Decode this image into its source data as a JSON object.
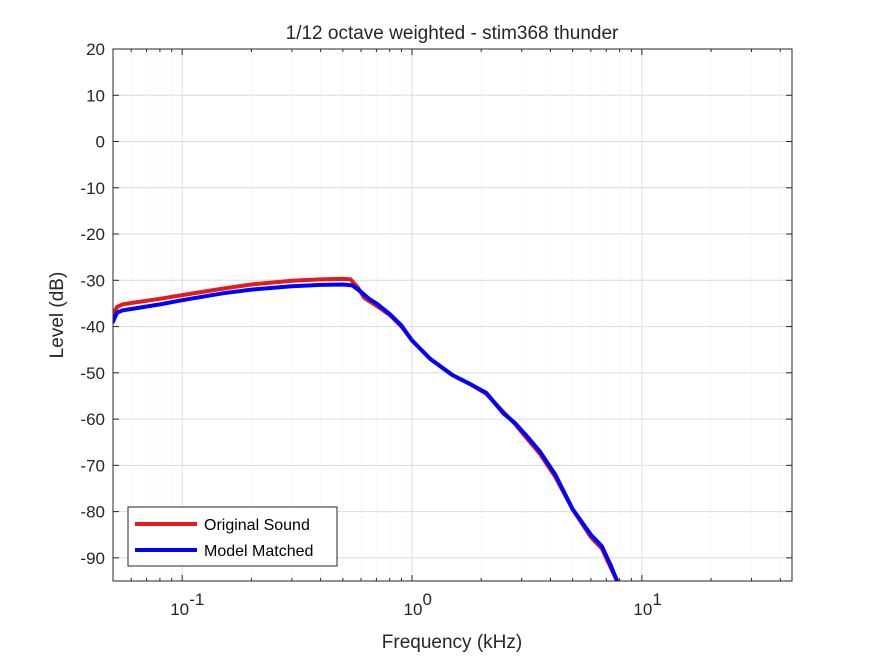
{
  "chart_data": {
    "type": "line",
    "title": "1/12 octave weighted - stim368 thunder",
    "xlabel": "Frequency (kHz)",
    "ylabel": "Level (dB)",
    "xscale": "log",
    "xlim": [
      0.05,
      45
    ],
    "ylim": [
      -95,
      20
    ],
    "grid": true,
    "minor_grid": true,
    "legend_position": "bottom-left",
    "x_ticks": [
      {
        "value": 0.1,
        "base": "10",
        "exp": "-1"
      },
      {
        "value": 1,
        "base": "10",
        "exp": "0"
      },
      {
        "value": 10,
        "base": "10",
        "exp": "1"
      }
    ],
    "y_ticks": [
      {
        "value": 20,
        "label": "20"
      },
      {
        "value": 10,
        "label": "10"
      },
      {
        "value": 0,
        "label": "0"
      },
      {
        "value": -10,
        "label": "-10"
      },
      {
        "value": -20,
        "label": "-20"
      },
      {
        "value": -30,
        "label": "-30"
      },
      {
        "value": -40,
        "label": "-40"
      },
      {
        "value": -50,
        "label": "-50"
      },
      {
        "value": -60,
        "label": "-60"
      },
      {
        "value": -70,
        "label": "-70"
      },
      {
        "value": -80,
        "label": "-80"
      },
      {
        "value": -90,
        "label": "-90"
      }
    ],
    "series": [
      {
        "name": "Original Sound",
        "color": "#e41a1c",
        "x": [
          0.05,
          0.052,
          0.055,
          0.06,
          0.08,
          0.1,
          0.15,
          0.2,
          0.3,
          0.4,
          0.5,
          0.54,
          0.58,
          0.62,
          0.7,
          0.8,
          0.9,
          1.0,
          1.2,
          1.5,
          1.8,
          2.1,
          2.5,
          2.8,
          3.2,
          3.6,
          4.2,
          5.0,
          6.0,
          6.7,
          7.3,
          7.8,
          7.9
        ],
        "y": [
          -37.5,
          -35.8,
          -35.2,
          -34.9,
          -34.0,
          -33.2,
          -31.8,
          -30.9,
          -30.1,
          -29.8,
          -29.7,
          -29.8,
          -31.5,
          -33.8,
          -35.5,
          -37.5,
          -40.0,
          -43.0,
          -47.0,
          -50.5,
          -52.5,
          -54.5,
          -58.5,
          -61.0,
          -64.5,
          -67.5,
          -72.5,
          -79.5,
          -85.5,
          -88.0,
          -92.0,
          -95.0,
          -96.0
        ]
      },
      {
        "name": "Model Matched",
        "color": "#0000ff",
        "x": [
          0.05,
          0.052,
          0.055,
          0.06,
          0.08,
          0.1,
          0.15,
          0.2,
          0.3,
          0.4,
          0.5,
          0.55,
          0.6,
          0.65,
          0.7,
          0.8,
          0.9,
          1.0,
          1.2,
          1.5,
          1.8,
          2.1,
          2.5,
          2.8,
          3.2,
          3.6,
          4.2,
          5.0,
          6.0,
          6.7,
          7.3,
          7.8,
          7.9
        ],
        "y": [
          -39.0,
          -37.0,
          -36.5,
          -36.2,
          -35.2,
          -34.3,
          -32.8,
          -32.0,
          -31.3,
          -31.0,
          -30.9,
          -31.1,
          -32.5,
          -34.0,
          -35.0,
          -37.3,
          -39.8,
          -43.0,
          -47.0,
          -50.5,
          -52.5,
          -54.3,
          -58.8,
          -60.8,
          -64.0,
          -67.0,
          -72.0,
          -79.5,
          -85.0,
          -87.5,
          -91.5,
          -95.0,
          -96.0
        ]
      }
    ]
  }
}
